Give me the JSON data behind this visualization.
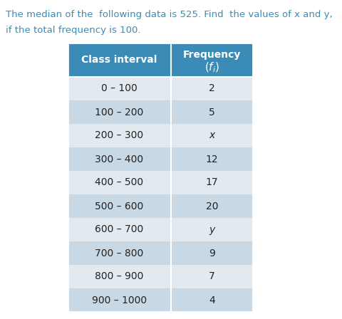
{
  "title_line1": "The median of the  following data is 525. Find  the values of x and y,",
  "title_line2": "if the total frequency is 100.",
  "rows": [
    [
      "0 – 100",
      "2"
    ],
    [
      "100 – 200",
      "5"
    ],
    [
      "200 – 300",
      "x"
    ],
    [
      "300 – 400",
      "12"
    ],
    [
      "400 – 500",
      "17"
    ],
    [
      "500 – 600",
      "20"
    ],
    [
      "600 – 700",
      "y"
    ],
    [
      "700 – 800",
      "9"
    ],
    [
      "800 – 900",
      "7"
    ],
    [
      "900 – 1000",
      "4"
    ]
  ],
  "header_bg": "#3A8BB5",
  "row_bg_light": "#E2EAF0",
  "row_bg_dark": "#C8D8E4",
  "header_text_color": "#FFFFFF",
  "row_text_color": "#222222",
  "title_text_color": "#3A8BB5",
  "fig_bg": "#FFFFFF",
  "title_fontsize": 9.5,
  "header_fontsize": 10,
  "row_fontsize": 10
}
